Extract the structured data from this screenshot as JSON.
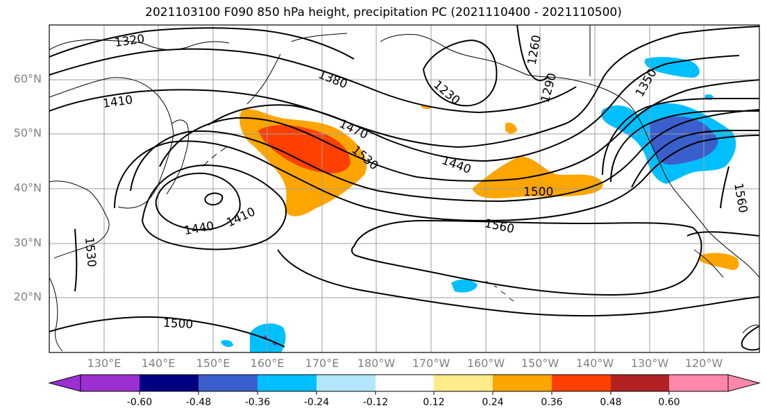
{
  "title": "2021103100 F090 850 hPa height, precipitation PC (2021110400 - 2021110500)",
  "lat_labels": [
    "60°N",
    "50°N",
    "40°N",
    "30°N",
    "20°N"
  ],
  "lon_labels": [
    "130°E",
    "140°E",
    "150°E",
    "160°E",
    "170°E",
    "180°W",
    "170°W",
    "160°W",
    "150°W",
    "140°W",
    "130°W",
    "120°W"
  ],
  "contour_labels": [
    "1320",
    "1410",
    "1380",
    "1230",
    "1260",
    "1290",
    "1350",
    "1470",
    "1530",
    "1440",
    "1410",
    "1440",
    "1500",
    "1560",
    "1560",
    "1530",
    "1500"
  ],
  "colorbar": {
    "ticks": [
      "-0.60",
      "-0.48",
      "-0.36",
      "-0.24",
      "-0.12",
      "0.12",
      "0.24",
      "0.36",
      "0.48",
      "0.60"
    ],
    "colors": [
      "#9b30d0",
      "#000080",
      "#3a5fcd",
      "#00bfff",
      "#b3e5fc",
      "#ffffff",
      "#ffeb8a",
      "#ffa500",
      "#ff4000",
      "#b22222",
      "#ff88aa"
    ]
  },
  "colors": {
    "contour": "#000000",
    "grid": "#9e9e9e",
    "tick_label": "#808080"
  }
}
